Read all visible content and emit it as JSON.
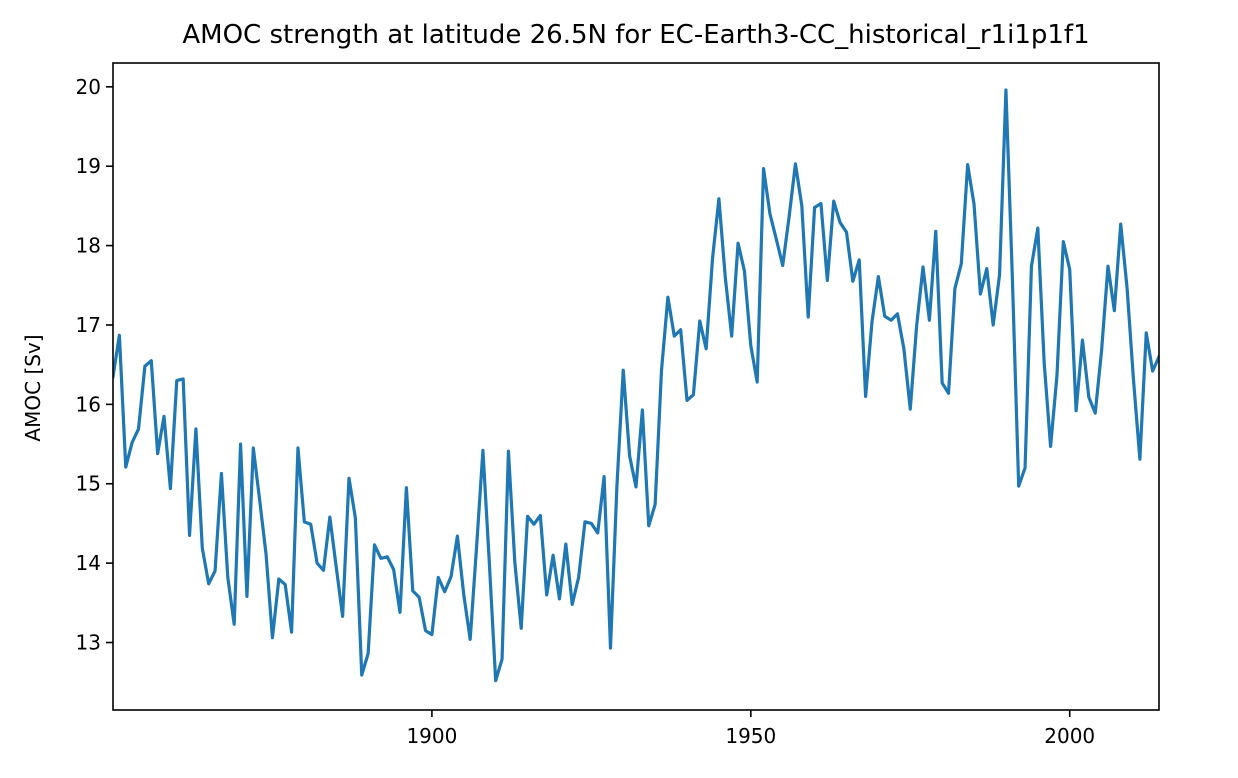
{
  "chart_data": {
    "type": "line",
    "title": "AMOC strength at latitude 26.5N for EC-Earth3-CC_historical_r1i1p1f1",
    "xlabel": "",
    "ylabel": "AMOC [Sv]",
    "xlim": [
      1850,
      2014
    ],
    "ylim": [
      12.15,
      20.3
    ],
    "xticks": [
      1900,
      1950,
      2000
    ],
    "yticks": [
      13,
      14,
      15,
      16,
      17,
      18,
      19,
      20
    ],
    "grid": false,
    "color": "#1f77b4",
    "series": [
      {
        "x": [
          1850,
          1851,
          1852,
          1853,
          1854,
          1855,
          1856,
          1857,
          1858,
          1859,
          1860,
          1861,
          1862,
          1863,
          1864,
          1865,
          1866,
          1867,
          1868,
          1869,
          1870,
          1871,
          1872,
          1873,
          1874,
          1875,
          1876,
          1877,
          1878,
          1879,
          1880,
          1881,
          1882,
          1883,
          1884,
          1885,
          1886,
          1887,
          1888,
          1889,
          1890,
          1891,
          1892,
          1893,
          1894,
          1895,
          1896,
          1897,
          1898,
          1899,
          1900,
          1901,
          1902,
          1903,
          1904,
          1905,
          1906,
          1907,
          1908,
          1909,
          1910,
          1911,
          1912,
          1913,
          1914,
          1915,
          1916,
          1917,
          1918,
          1919,
          1920,
          1921,
          1922,
          1923,
          1924,
          1925,
          1926,
          1927,
          1928,
          1929,
          1930,
          1931,
          1932,
          1933,
          1934,
          1935,
          1936,
          1937,
          1938,
          1939,
          1940,
          1941,
          1942,
          1943,
          1944,
          1945,
          1946,
          1947,
          1948,
          1949,
          1950,
          1951,
          1952,
          1953,
          1954,
          1955,
          1956,
          1957,
          1958,
          1959,
          1960,
          1961,
          1962,
          1963,
          1964,
          1965,
          1966,
          1967,
          1968,
          1969,
          1970,
          1971,
          1972,
          1973,
          1974,
          1975,
          1976,
          1977,
          1978,
          1979,
          1980,
          1981,
          1982,
          1983,
          1984,
          1985,
          1986,
          1987,
          1988,
          1989,
          1990,
          1991,
          1992,
          1993,
          1994,
          1995,
          1996,
          1997,
          1998,
          1999,
          2000,
          2001,
          2002,
          2003,
          2004,
          2005,
          2006,
          2007,
          2008,
          2009,
          2010,
          2011,
          2012,
          2013,
          2014
        ],
        "values": [
          16.35,
          16.87,
          15.21,
          15.52,
          15.69,
          16.48,
          16.55,
          15.38,
          15.85,
          14.94,
          16.3,
          16.32,
          14.35,
          15.69,
          14.19,
          13.74,
          13.9,
          15.13,
          13.82,
          13.23,
          15.5,
          13.58,
          15.45,
          14.79,
          14.11,
          13.06,
          13.8,
          13.73,
          13.13,
          15.45,
          14.52,
          14.49,
          14.0,
          13.91,
          14.58,
          13.95,
          13.33,
          15.07,
          14.57,
          12.59,
          12.86,
          14.23,
          14.06,
          14.08,
          13.92,
          13.38,
          14.95,
          13.65,
          13.57,
          13.15,
          13.1,
          13.82,
          13.64,
          13.83,
          14.34,
          13.6,
          13.04,
          14.2,
          15.42,
          14.01,
          12.52,
          12.79,
          15.41,
          14.01,
          13.18,
          14.59,
          14.49,
          14.6,
          13.6,
          14.1,
          13.55,
          14.24,
          13.48,
          13.82,
          14.52,
          14.5,
          14.38,
          15.09,
          12.93,
          14.96,
          16.43,
          15.35,
          14.96,
          15.93,
          14.47,
          14.74,
          16.43,
          17.35,
          16.86,
          16.94,
          16.05,
          16.12,
          17.05,
          16.7,
          17.84,
          18.59,
          17.6,
          16.86,
          18.03,
          17.68,
          16.74,
          16.28,
          18.97,
          18.4,
          18.08,
          17.75,
          18.36,
          19.03,
          18.5,
          17.1,
          18.48,
          18.53,
          17.56,
          18.56,
          18.29,
          18.17,
          17.55,
          17.82,
          16.1,
          17.04,
          17.61,
          17.11,
          17.06,
          17.14,
          16.7,
          15.94,
          16.99,
          17.73,
          17.06,
          18.18,
          16.27,
          16.14,
          17.46,
          17.77,
          19.02,
          18.52,
          17.39,
          17.71,
          17.0,
          17.63,
          19.96,
          17.62,
          14.97,
          15.2,
          17.74,
          18.22,
          16.52,
          15.47,
          16.36,
          18.05,
          17.7,
          15.92,
          16.81,
          16.09,
          15.89,
          16.68,
          17.74,
          17.18,
          18.27,
          17.46,
          16.31,
          15.31,
          16.9,
          16.42,
          16.6
        ]
      }
    ]
  }
}
